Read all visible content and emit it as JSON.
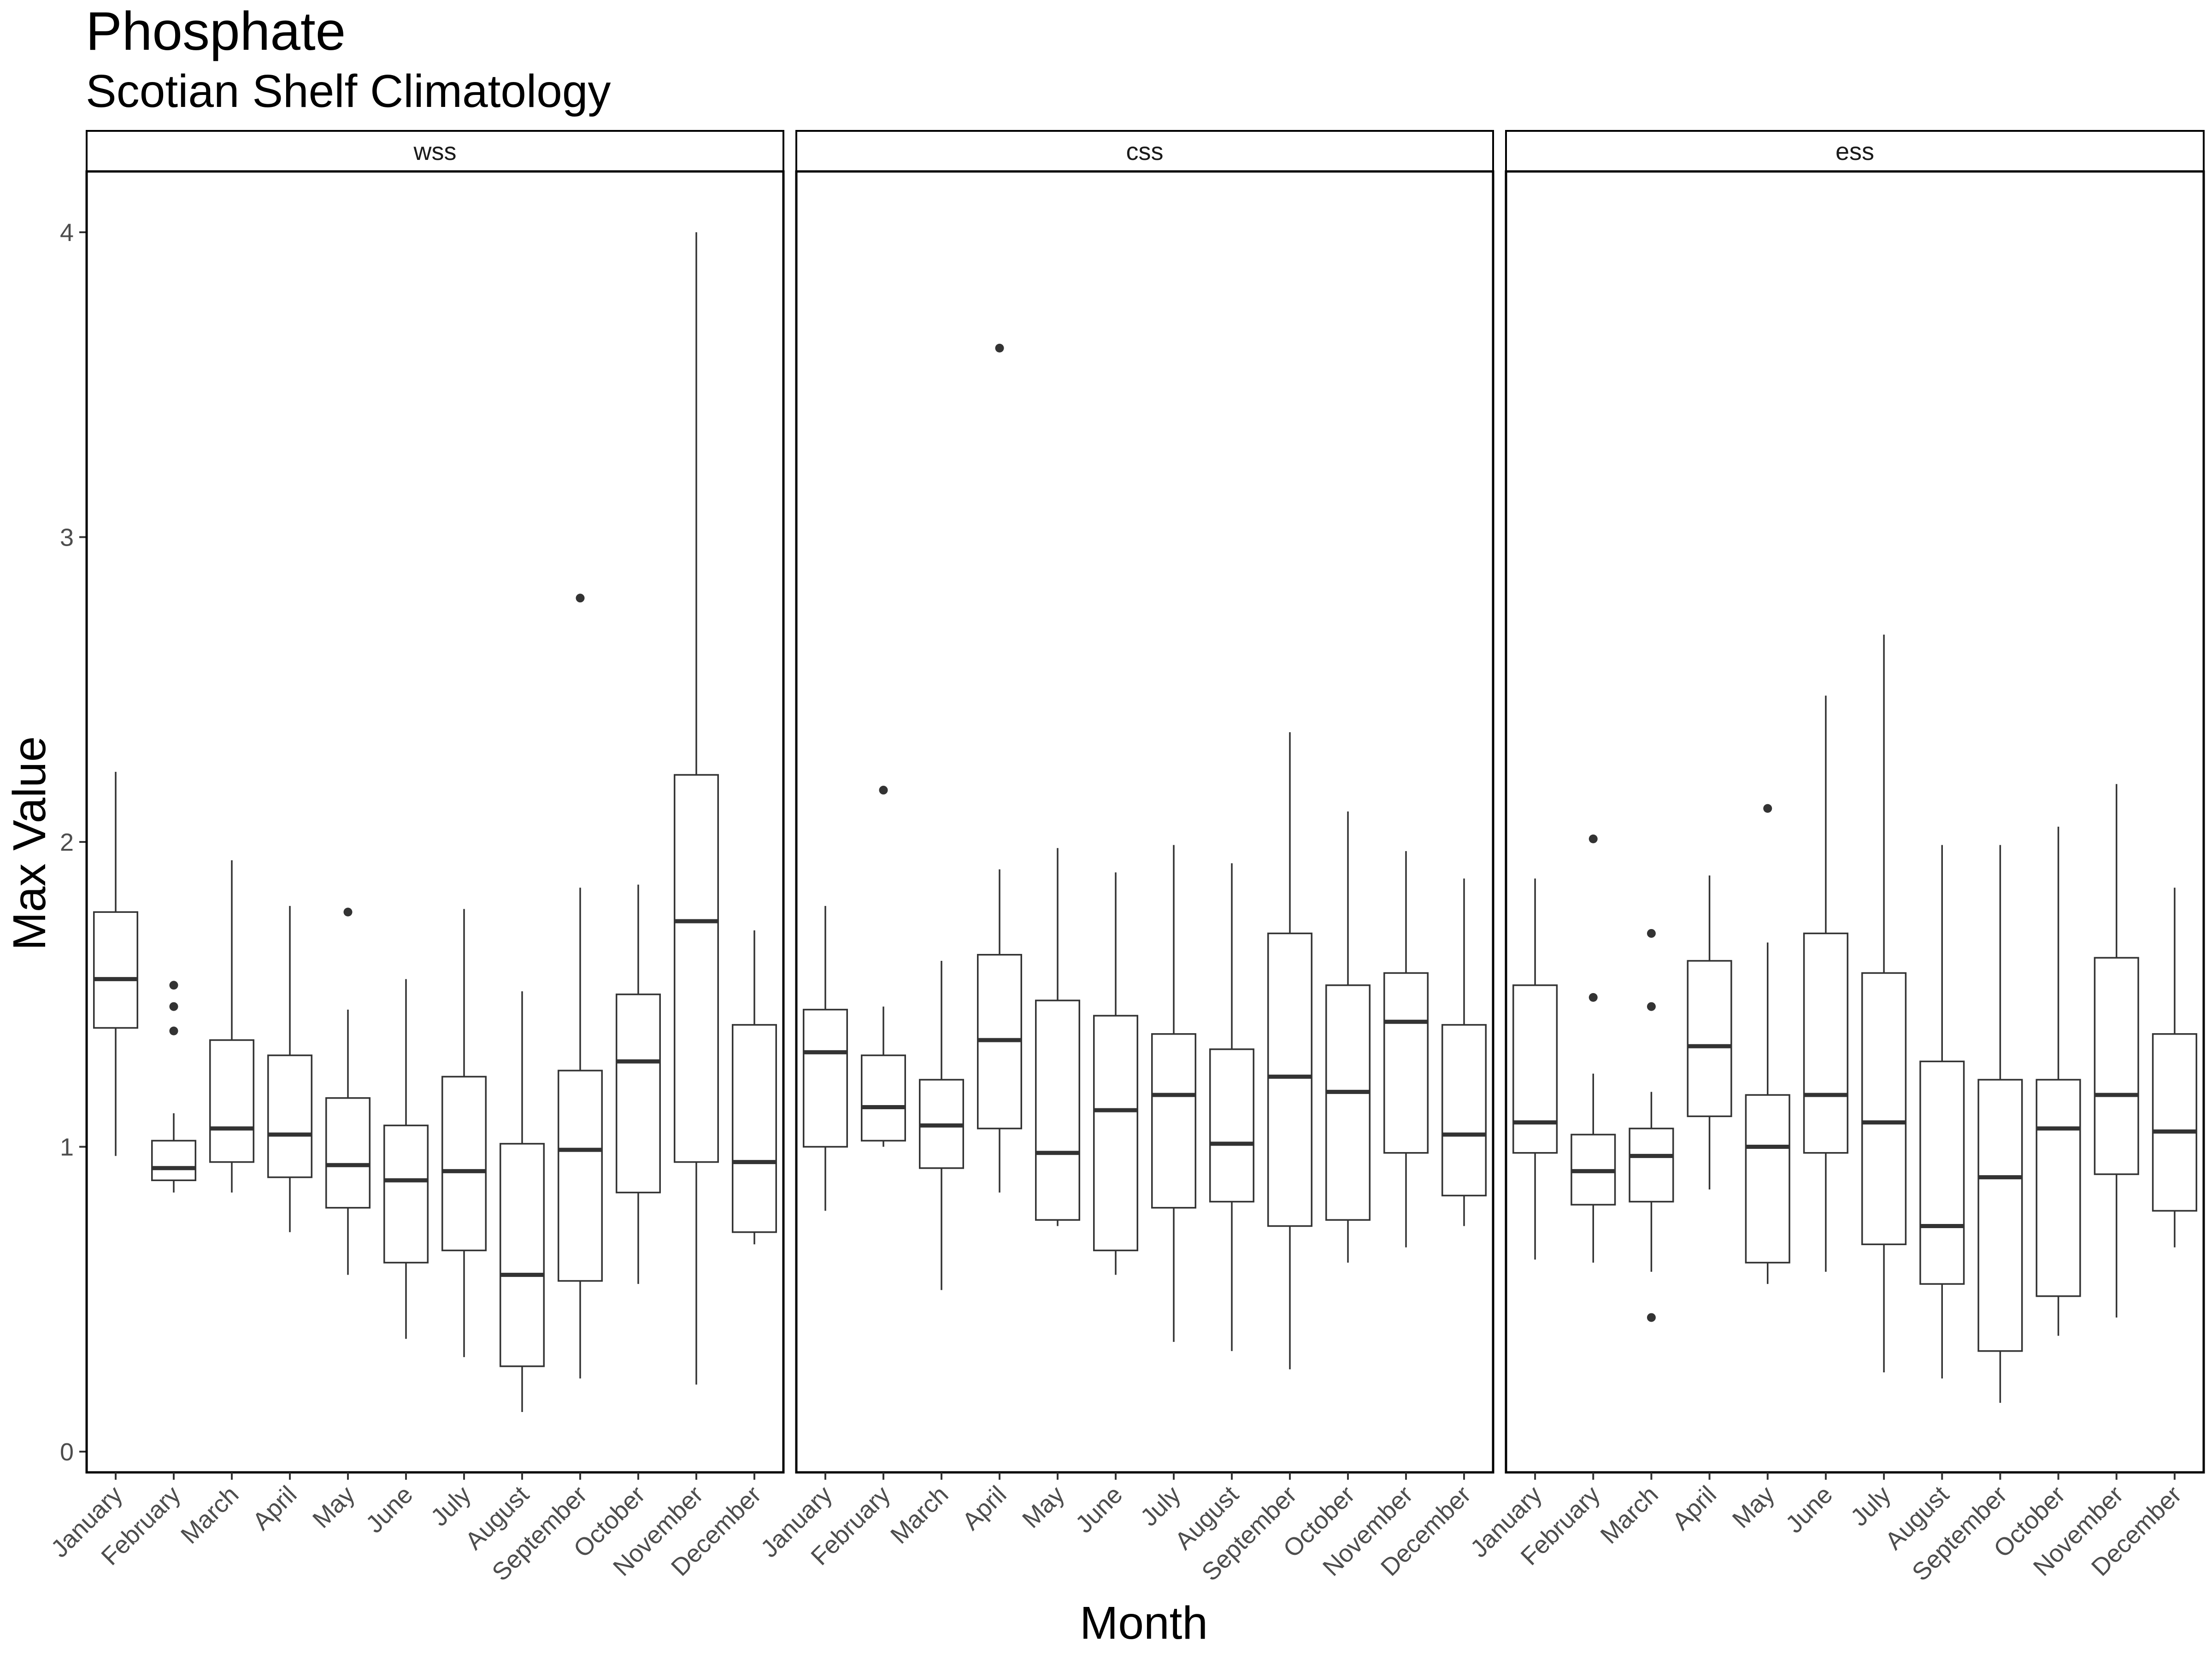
{
  "chart_data": {
    "type": "boxplot",
    "title": "Phosphate",
    "subtitle": "Scotian Shelf Climatology",
    "xlabel": "Month",
    "ylabel": "Max Value",
    "ylim": [
      -0.06,
      4.2
    ],
    "yticks": [
      0,
      1,
      2,
      3,
      4
    ],
    "grid": false,
    "categories": [
      "January",
      "February",
      "March",
      "April",
      "May",
      "June",
      "July",
      "August",
      "September",
      "October",
      "November",
      "December"
    ],
    "facets": [
      {
        "name": "wss",
        "boxes": [
          {
            "min": 0.97,
            "q1": 1.39,
            "median": 1.55,
            "q3": 1.77,
            "max": 2.23,
            "outliers": []
          },
          {
            "min": 0.85,
            "q1": 0.89,
            "median": 0.93,
            "q3": 1.02,
            "max": 1.11,
            "outliers": [
              1.38,
              1.46,
              1.53
            ]
          },
          {
            "min": 0.85,
            "q1": 0.95,
            "median": 1.06,
            "q3": 1.35,
            "max": 1.94,
            "outliers": []
          },
          {
            "min": 0.72,
            "q1": 0.9,
            "median": 1.04,
            "q3": 1.3,
            "max": 1.79,
            "outliers": []
          },
          {
            "min": 0.58,
            "q1": 0.8,
            "median": 0.94,
            "q3": 1.16,
            "max": 1.45,
            "outliers": [
              1.77
            ]
          },
          {
            "min": 0.37,
            "q1": 0.62,
            "median": 0.89,
            "q3": 1.07,
            "max": 1.55,
            "outliers": []
          },
          {
            "min": 0.31,
            "q1": 0.66,
            "median": 0.92,
            "q3": 1.23,
            "max": 1.78,
            "outliers": []
          },
          {
            "min": 0.13,
            "q1": 0.28,
            "median": 0.58,
            "q3": 1.01,
            "max": 1.51,
            "outliers": []
          },
          {
            "min": 0.24,
            "q1": 0.56,
            "median": 0.99,
            "q3": 1.25,
            "max": 1.85,
            "outliers": [
              2.8
            ]
          },
          {
            "min": 0.55,
            "q1": 0.85,
            "median": 1.28,
            "q3": 1.5,
            "max": 1.86,
            "outliers": []
          },
          {
            "min": 0.22,
            "q1": 0.95,
            "median": 1.74,
            "q3": 2.22,
            "max": 4.0,
            "outliers": []
          },
          {
            "min": 0.68,
            "q1": 0.72,
            "median": 0.95,
            "q3": 1.4,
            "max": 1.71,
            "outliers": []
          }
        ]
      },
      {
        "name": "css",
        "boxes": [
          {
            "min": 0.79,
            "q1": 1.0,
            "median": 1.31,
            "q3": 1.45,
            "max": 1.79,
            "outliers": []
          },
          {
            "min": 1.0,
            "q1": 1.02,
            "median": 1.13,
            "q3": 1.3,
            "max": 1.46,
            "outliers": [
              2.17
            ]
          },
          {
            "min": 0.53,
            "q1": 0.93,
            "median": 1.07,
            "q3": 1.22,
            "max": 1.61,
            "outliers": []
          },
          {
            "min": 0.85,
            "q1": 1.06,
            "median": 1.35,
            "q3": 1.63,
            "max": 1.91,
            "outliers": [
              3.62
            ]
          },
          {
            "min": 0.74,
            "q1": 0.76,
            "median": 0.98,
            "q3": 1.48,
            "max": 1.98,
            "outliers": []
          },
          {
            "min": 0.58,
            "q1": 0.66,
            "median": 1.12,
            "q3": 1.43,
            "max": 1.9,
            "outliers": []
          },
          {
            "min": 0.36,
            "q1": 0.8,
            "median": 1.17,
            "q3": 1.37,
            "max": 1.99,
            "outliers": []
          },
          {
            "min": 0.33,
            "q1": 0.82,
            "median": 1.01,
            "q3": 1.32,
            "max": 1.93,
            "outliers": []
          },
          {
            "min": 0.27,
            "q1": 0.74,
            "median": 1.23,
            "q3": 1.7,
            "max": 2.36,
            "outliers": []
          },
          {
            "min": 0.62,
            "q1": 0.76,
            "median": 1.18,
            "q3": 1.53,
            "max": 2.1,
            "outliers": []
          },
          {
            "min": 0.67,
            "q1": 0.98,
            "median": 1.41,
            "q3": 1.57,
            "max": 1.97,
            "outliers": []
          },
          {
            "min": 0.74,
            "q1": 0.84,
            "median": 1.04,
            "q3": 1.4,
            "max": 1.88,
            "outliers": []
          }
        ]
      },
      {
        "name": "ess",
        "boxes": [
          {
            "min": 0.63,
            "q1": 0.98,
            "median": 1.08,
            "q3": 1.53,
            "max": 1.88,
            "outliers": []
          },
          {
            "min": 0.62,
            "q1": 0.81,
            "median": 0.92,
            "q3": 1.04,
            "max": 1.24,
            "outliers": [
              1.49,
              2.01
            ]
          },
          {
            "min": 0.59,
            "q1": 0.82,
            "median": 0.97,
            "q3": 1.06,
            "max": 1.18,
            "outliers": [
              0.44,
              1.46,
              1.7
            ]
          },
          {
            "min": 0.86,
            "q1": 1.1,
            "median": 1.33,
            "q3": 1.61,
            "max": 1.89,
            "outliers": []
          },
          {
            "min": 0.55,
            "q1": 0.62,
            "median": 1.0,
            "q3": 1.17,
            "max": 1.67,
            "outliers": [
              2.11
            ]
          },
          {
            "min": 0.59,
            "q1": 0.98,
            "median": 1.17,
            "q3": 1.7,
            "max": 2.48,
            "outliers": []
          },
          {
            "min": 0.26,
            "q1": 0.68,
            "median": 1.08,
            "q3": 1.57,
            "max": 2.68,
            "outliers": []
          },
          {
            "min": 0.24,
            "q1": 0.55,
            "median": 0.74,
            "q3": 1.28,
            "max": 1.99,
            "outliers": []
          },
          {
            "min": 0.16,
            "q1": 0.33,
            "median": 0.9,
            "q3": 1.22,
            "max": 1.99,
            "outliers": []
          },
          {
            "min": 0.38,
            "q1": 0.51,
            "median": 1.06,
            "q3": 1.22,
            "max": 2.05,
            "outliers": []
          },
          {
            "min": 0.44,
            "q1": 0.91,
            "median": 1.17,
            "q3": 1.62,
            "max": 2.19,
            "outliers": []
          },
          {
            "min": 0.67,
            "q1": 0.79,
            "median": 1.05,
            "q3": 1.37,
            "max": 1.85,
            "outliers": []
          }
        ]
      }
    ]
  },
  "colors": {
    "background": "#ffffff",
    "box_stroke": "#333333",
    "outlier": "#333333",
    "panel_border": "#000000",
    "tick_text": "#4d4d4d"
  }
}
